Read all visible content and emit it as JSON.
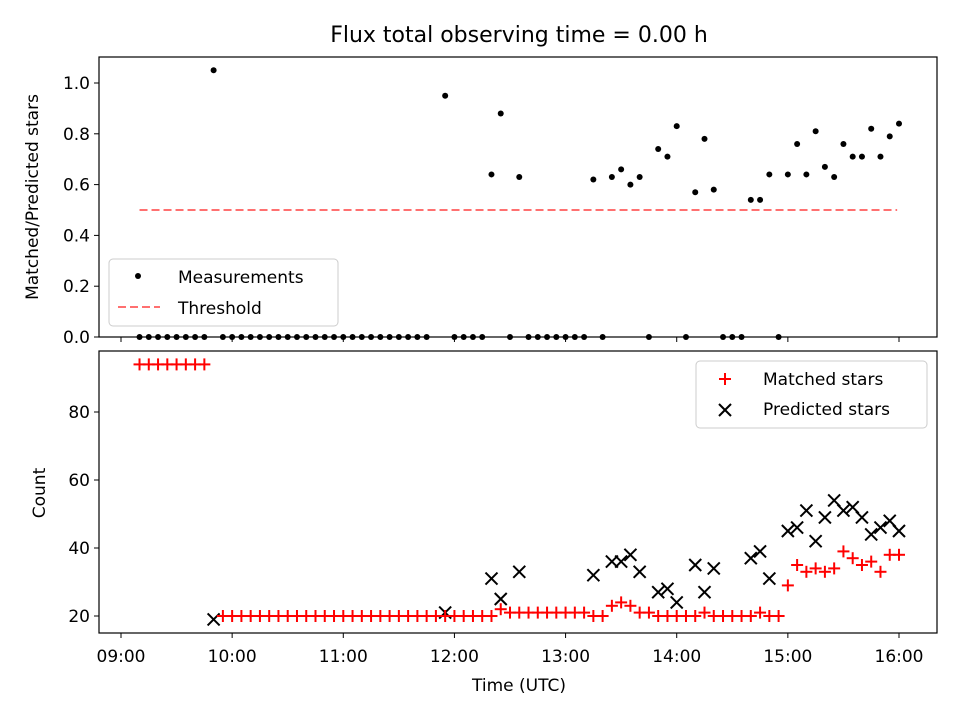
{
  "chart_data": [
    {
      "type": "scatter",
      "title": "Flux total observing time = 0.00 h",
      "xlabel": "",
      "ylabel": "Matched/Predicted stars",
      "xlim": [
        "09:00",
        "16:00"
      ],
      "ylim": [
        0,
        1.1
      ],
      "yticks": [
        0.0,
        0.2,
        0.4,
        0.6,
        0.8,
        1.0
      ],
      "ytick_labels": [
        "0.0",
        "0.2",
        "0.4",
        "0.6",
        "0.8",
        "1.0"
      ],
      "legend_position": "lower-left",
      "legend": [
        "Measurements",
        "Threshold"
      ],
      "threshold": {
        "name": "Threshold",
        "y": 0.5,
        "x_start": "09:10",
        "x_end": "15:59",
        "color": "#ff7070",
        "style": "dashed"
      },
      "series": [
        {
          "name": "Measurements",
          "color": "#000000",
          "marker": "dot",
          "points": [
            [
              "09:10",
              0
            ],
            [
              "09:15",
              0
            ],
            [
              "09:20",
              0
            ],
            [
              "09:25",
              0
            ],
            [
              "09:30",
              0
            ],
            [
              "09:35",
              0
            ],
            [
              "09:40",
              0
            ],
            [
              "09:45",
              0
            ],
            [
              "09:50",
              1.05
            ],
            [
              "09:55",
              0
            ],
            [
              "10:00",
              0
            ],
            [
              "10:05",
              0
            ],
            [
              "10:10",
              0
            ],
            [
              "10:15",
              0
            ],
            [
              "10:20",
              0
            ],
            [
              "10:25",
              0
            ],
            [
              "10:30",
              0
            ],
            [
              "10:35",
              0
            ],
            [
              "10:40",
              0
            ],
            [
              "10:45",
              0
            ],
            [
              "10:50",
              0
            ],
            [
              "10:55",
              0
            ],
            [
              "11:00",
              0
            ],
            [
              "11:05",
              0
            ],
            [
              "11:10",
              0
            ],
            [
              "11:15",
              0
            ],
            [
              "11:20",
              0
            ],
            [
              "11:25",
              0
            ],
            [
              "11:30",
              0
            ],
            [
              "11:35",
              0
            ],
            [
              "11:40",
              0
            ],
            [
              "11:45",
              0
            ],
            [
              "11:55",
              0.95
            ],
            [
              "12:00",
              0
            ],
            [
              "12:05",
              0
            ],
            [
              "12:10",
              0
            ],
            [
              "12:15",
              0
            ],
            [
              "12:20",
              0.64
            ],
            [
              "12:25",
              0.88
            ],
            [
              "12:30",
              0
            ],
            [
              "12:35",
              0.63
            ],
            [
              "12:40",
              0
            ],
            [
              "12:45",
              0
            ],
            [
              "12:50",
              0
            ],
            [
              "12:55",
              0
            ],
            [
              "13:00",
              0
            ],
            [
              "13:05",
              0
            ],
            [
              "13:10",
              0
            ],
            [
              "13:15",
              0.62
            ],
            [
              "13:20",
              0
            ],
            [
              "13:25",
              0.63
            ],
            [
              "13:30",
              0.66
            ],
            [
              "13:35",
              0.6
            ],
            [
              "13:40",
              0.63
            ],
            [
              "13:45",
              0
            ],
            [
              "13:50",
              0.74
            ],
            [
              "13:55",
              0.71
            ],
            [
              "14:00",
              0.83
            ],
            [
              "14:05",
              0
            ],
            [
              "14:10",
              0.57
            ],
            [
              "14:15",
              0.78
            ],
            [
              "14:20",
              0.58
            ],
            [
              "14:25",
              0
            ],
            [
              "14:30",
              0
            ],
            [
              "14:35",
              0
            ],
            [
              "14:40",
              0.54
            ],
            [
              "14:45",
              0.54
            ],
            [
              "14:50",
              0.64
            ],
            [
              "14:55",
              0
            ],
            [
              "15:00",
              0.64
            ],
            [
              "15:05",
              0.76
            ],
            [
              "15:10",
              0.64
            ],
            [
              "15:15",
              0.81
            ],
            [
              "15:20",
              0.67
            ],
            [
              "15:25",
              0.63
            ],
            [
              "15:30",
              0.76
            ],
            [
              "15:35",
              0.71
            ],
            [
              "15:40",
              0.71
            ],
            [
              "15:45",
              0.82
            ],
            [
              "15:50",
              0.71
            ],
            [
              "15:55",
              0.79
            ],
            [
              "16:00",
              0.84
            ]
          ]
        }
      ]
    },
    {
      "type": "scatter",
      "title": "",
      "xlabel": "Time (UTC)",
      "ylabel": "Count",
      "xlim": [
        "09:00",
        "16:00"
      ],
      "ylim": [
        16,
        96
      ],
      "yticks": [
        20,
        40,
        60,
        80
      ],
      "ytick_labels": [
        "20",
        "40",
        "60",
        "80"
      ],
      "xticks": [
        "09:00",
        "10:00",
        "11:00",
        "12:00",
        "13:00",
        "14:00",
        "15:00",
        "16:00"
      ],
      "xtick_labels": [
        "09:00",
        "10:00",
        "11:00",
        "12:00",
        "13:00",
        "14:00",
        "15:00",
        "16:00"
      ],
      "legend_position": "top-right",
      "legend": [
        "Matched stars",
        "Predicted stars"
      ],
      "series": [
        {
          "name": "Matched stars",
          "color": "#ff0000",
          "marker": "plus",
          "points": [
            [
              "09:10",
              94
            ],
            [
              "09:15",
              94
            ],
            [
              "09:20",
              94
            ],
            [
              "09:25",
              94
            ],
            [
              "09:30",
              94
            ],
            [
              "09:35",
              94
            ],
            [
              "09:40",
              94
            ],
            [
              "09:45",
              94
            ],
            [
              "09:55",
              20
            ],
            [
              "10:00",
              20
            ],
            [
              "10:05",
              20
            ],
            [
              "10:10",
              20
            ],
            [
              "10:15",
              20
            ],
            [
              "10:20",
              20
            ],
            [
              "10:25",
              20
            ],
            [
              "10:30",
              20
            ],
            [
              "10:35",
              20
            ],
            [
              "10:40",
              20
            ],
            [
              "10:45",
              20
            ],
            [
              "10:50",
              20
            ],
            [
              "10:55",
              20
            ],
            [
              "11:00",
              20
            ],
            [
              "11:05",
              20
            ],
            [
              "11:10",
              20
            ],
            [
              "11:15",
              20
            ],
            [
              "11:20",
              20
            ],
            [
              "11:25",
              20
            ],
            [
              "11:30",
              20
            ],
            [
              "11:35",
              20
            ],
            [
              "11:40",
              20
            ],
            [
              "11:45",
              20
            ],
            [
              "11:50",
              20
            ],
            [
              "11:55",
              20
            ],
            [
              "12:00",
              20
            ],
            [
              "12:05",
              20
            ],
            [
              "12:10",
              20
            ],
            [
              "12:15",
              20
            ],
            [
              "12:20",
              20
            ],
            [
              "12:25",
              22
            ],
            [
              "12:30",
              21
            ],
            [
              "12:35",
              21
            ],
            [
              "12:40",
              21
            ],
            [
              "12:45",
              21
            ],
            [
              "12:50",
              21
            ],
            [
              "12:55",
              21
            ],
            [
              "13:00",
              21
            ],
            [
              "13:05",
              21
            ],
            [
              "13:10",
              21
            ],
            [
              "13:15",
              20
            ],
            [
              "13:20",
              20
            ],
            [
              "13:25",
              23
            ],
            [
              "13:30",
              24
            ],
            [
              "13:35",
              23
            ],
            [
              "13:40",
              21
            ],
            [
              "13:45",
              21
            ],
            [
              "13:50",
              20
            ],
            [
              "13:55",
              20
            ],
            [
              "14:00",
              20
            ],
            [
              "14:05",
              20
            ],
            [
              "14:10",
              20
            ],
            [
              "14:15",
              21
            ],
            [
              "14:20",
              20
            ],
            [
              "14:25",
              20
            ],
            [
              "14:30",
              20
            ],
            [
              "14:35",
              20
            ],
            [
              "14:40",
              20
            ],
            [
              "14:45",
              21
            ],
            [
              "14:50",
              20
            ],
            [
              "14:55",
              20
            ],
            [
              "15:00",
              29
            ],
            [
              "15:05",
              35
            ],
            [
              "15:10",
              33
            ],
            [
              "15:15",
              34
            ],
            [
              "15:20",
              33
            ],
            [
              "15:25",
              34
            ],
            [
              "15:30",
              39
            ],
            [
              "15:35",
              37
            ],
            [
              "15:40",
              35
            ],
            [
              "15:45",
              36
            ],
            [
              "15:50",
              33
            ],
            [
              "15:55",
              38
            ],
            [
              "16:00",
              38
            ]
          ]
        },
        {
          "name": "Predicted stars",
          "color": "#000000",
          "marker": "x",
          "points": [
            [
              "09:50",
              19
            ],
            [
              "11:55",
              21
            ],
            [
              "12:20",
              31
            ],
            [
              "12:25",
              25
            ],
            [
              "12:35",
              33
            ],
            [
              "13:15",
              32
            ],
            [
              "13:25",
              36
            ],
            [
              "13:30",
              36
            ],
            [
              "13:35",
              38
            ],
            [
              "13:40",
              33
            ],
            [
              "13:50",
              27
            ],
            [
              "13:55",
              28
            ],
            [
              "14:00",
              24
            ],
            [
              "14:10",
              35
            ],
            [
              "14:15",
              27
            ],
            [
              "14:20",
              34
            ],
            [
              "14:40",
              37
            ],
            [
              "14:45",
              39
            ],
            [
              "14:50",
              31
            ],
            [
              "15:00",
              45
            ],
            [
              "15:05",
              46
            ],
            [
              "15:10",
              51
            ],
            [
              "15:15",
              42
            ],
            [
              "15:20",
              49
            ],
            [
              "15:25",
              54
            ],
            [
              "15:30",
              51
            ],
            [
              "15:35",
              52
            ],
            [
              "15:40",
              49
            ],
            [
              "15:45",
              44
            ],
            [
              "15:50",
              46
            ],
            [
              "15:55",
              48
            ],
            [
              "16:00",
              45
            ]
          ]
        }
      ]
    }
  ]
}
